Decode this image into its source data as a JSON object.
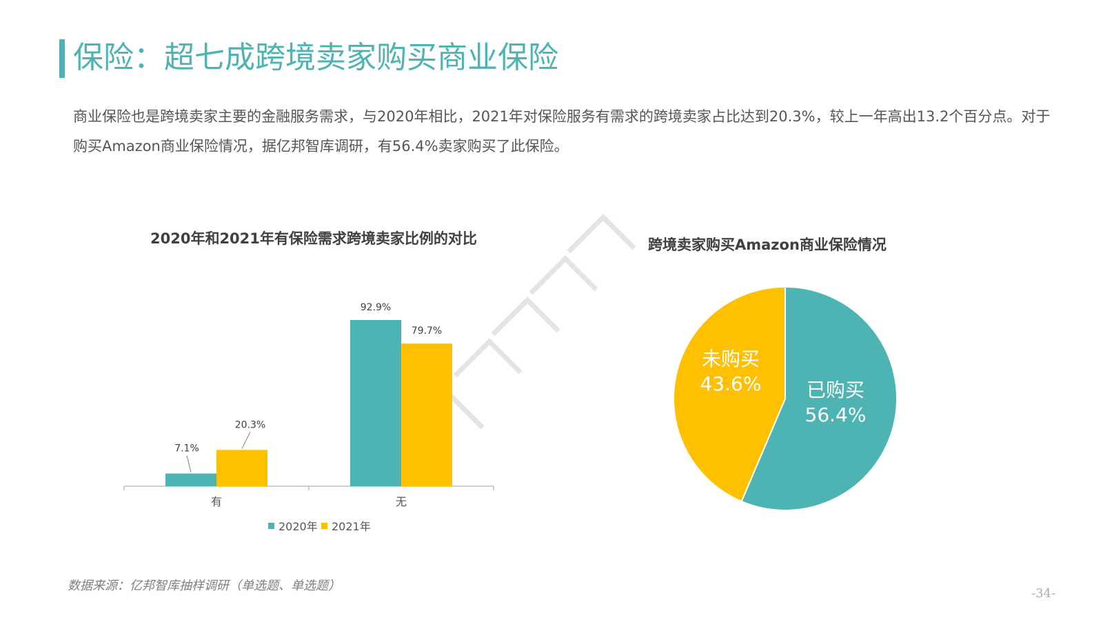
{
  "title": "保险：超七成跨境卖家购买商业保险",
  "intro": "商业保险也是跨境卖家主要的金融服务需求，与2020年相比，2021年对保险服务有需求的跨境卖家占比达到20.3%，较上一年高出13.2个百分点。对于购买Amazon商业保险情况，据亿邦智库调研，有56.4%卖家购买了此保险。",
  "source": "数据来源：亿邦智库抽样调研（单选题、单选题）",
  "page_number": "-34-",
  "colors": {
    "teal": "#4db3b3",
    "yellow": "#ffc000",
    "accent": "#4db3b3"
  },
  "chart_data": [
    {
      "type": "bar",
      "title": "2020年和2021年有保险需求跨境卖家比例的对比",
      "categories": [
        "有",
        "无"
      ],
      "series": [
        {
          "name": "2020年",
          "values": [
            7.1,
            92.9
          ],
          "labels": [
            "7.1%",
            "92.9%"
          ],
          "color": "#4db3b3"
        },
        {
          "name": "2021年",
          "values": [
            20.3,
            79.7
          ],
          "labels": [
            "20.3%",
            "79.7%"
          ],
          "color": "#ffc000"
        }
      ],
      "ylim": [
        0,
        100
      ],
      "grid": false,
      "legend": "bottom"
    },
    {
      "type": "pie",
      "title": "跨境卖家购买Amazon商业保险情况",
      "slices": [
        {
          "name": "已购买",
          "value": 56.4,
          "label": "56.4%",
          "color": "#4db3b3"
        },
        {
          "name": "未购买",
          "value": 43.6,
          "label": "43.6%",
          "color": "#ffc000"
        }
      ]
    }
  ]
}
